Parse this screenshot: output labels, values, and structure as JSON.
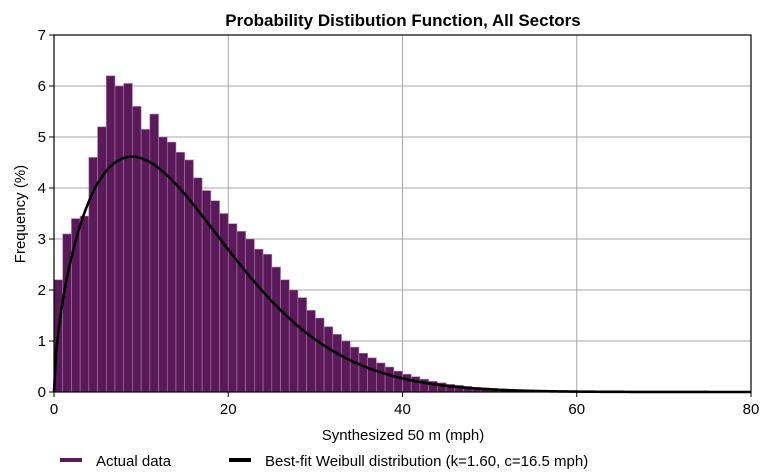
{
  "chart_data": {
    "type": "bar",
    "title": "Probability Distibution Function, All Sectors",
    "xlabel": "Synthesized 50 m (mph)",
    "ylabel": "Frequency (%)",
    "xlim": [
      0,
      80
    ],
    "ylim": [
      0,
      7
    ],
    "xticks": [
      "0",
      "20",
      "40",
      "60",
      "80"
    ],
    "yticks": [
      "0",
      "1",
      "2",
      "3",
      "4",
      "5",
      "6",
      "7"
    ],
    "grid": true,
    "legend_position": "bottom",
    "bin_width": 1,
    "bin_starts": [
      0,
      1,
      2,
      3,
      4,
      5,
      6,
      7,
      8,
      9,
      10,
      11,
      12,
      13,
      14,
      15,
      16,
      17,
      18,
      19,
      20,
      21,
      22,
      23,
      24,
      25,
      26,
      27,
      28,
      29,
      30,
      31,
      32,
      33,
      34,
      35,
      36,
      37,
      38,
      39,
      40,
      41,
      42,
      43,
      44,
      45,
      46,
      47,
      48,
      49,
      50,
      51,
      52,
      53,
      54,
      55,
      56,
      57,
      58,
      59,
      60,
      61,
      62,
      63,
      64,
      65,
      66,
      67,
      68,
      69,
      70,
      71,
      72,
      73,
      74,
      75,
      76,
      77,
      78,
      79
    ],
    "series": [
      {
        "name": "Actual data",
        "color": "#5a1a5a",
        "values": [
          2.2,
          3.1,
          3.4,
          3.45,
          4.6,
          5.2,
          6.2,
          6.0,
          6.05,
          5.6,
          5.15,
          5.45,
          5.0,
          4.9,
          4.7,
          4.55,
          4.2,
          3.95,
          3.75,
          3.5,
          3.3,
          3.15,
          3.0,
          2.8,
          2.7,
          2.45,
          2.2,
          2.0,
          1.85,
          1.6,
          1.45,
          1.28,
          1.13,
          1.0,
          0.88,
          0.76,
          0.67,
          0.57,
          0.49,
          0.41,
          0.35,
          0.3,
          0.25,
          0.21,
          0.18,
          0.15,
          0.13,
          0.11,
          0.09,
          0.08,
          0.07,
          0.06,
          0.05,
          0.04,
          0.035,
          0.03,
          0.025,
          0.02,
          0.02,
          0.015,
          0.015,
          0.01,
          0.01,
          0.01,
          0.01,
          0.01,
          0.01,
          0.01,
          0.01,
          0.01,
          0.01,
          0.01,
          0.01,
          0.01,
          0.01,
          0.01,
          0.01,
          0.01,
          0.01,
          0.01
        ]
      },
      {
        "name": "Best-fit Weibull distribution (k=1.60, c=16.5 mph)",
        "color": "#000000",
        "weibull": {
          "k": 1.6,
          "c": 16.5
        }
      }
    ]
  }
}
